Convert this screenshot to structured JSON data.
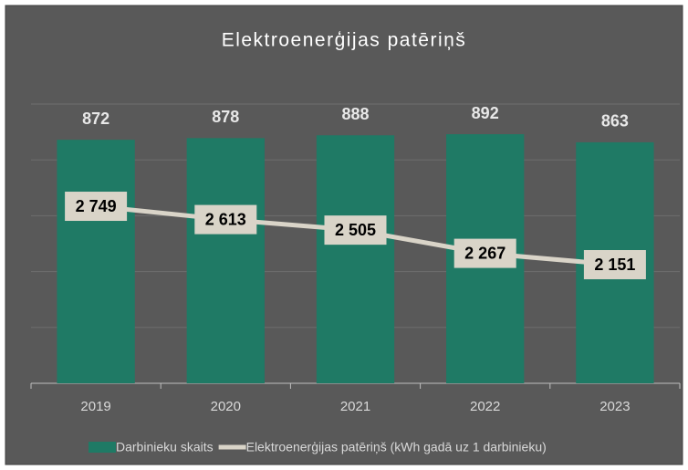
{
  "chart_data": {
    "type": "bar-line",
    "title": "Elektroenerģijas patēriņš",
    "categories": [
      "2019",
      "2020",
      "2021",
      "2022",
      "2023"
    ],
    "series": [
      {
        "name": "Darbinieku skaits",
        "color": "#1f7a65",
        "type": "bar",
        "values": [
          872,
          878,
          888,
          892,
          863
        ]
      },
      {
        "name": "Elektroenerģijas patēriņš (kWh gadā uz 1 darbinieku)",
        "color": "#d9d4c8",
        "type": "line",
        "axis": "y2",
        "values": [
          2749,
          2613,
          2505,
          2267,
          2151
        ],
        "value_labels": [
          "2 749",
          "2 613",
          "2 505",
          "2 267",
          "2 151"
        ]
      }
    ],
    "ylim": [
      0,
      1000
    ],
    "yticks": [
      0,
      200,
      400,
      600,
      800,
      1000
    ],
    "y2lim": [
      936,
      3796
    ],
    "grid": true,
    "legend": "bottom"
  }
}
